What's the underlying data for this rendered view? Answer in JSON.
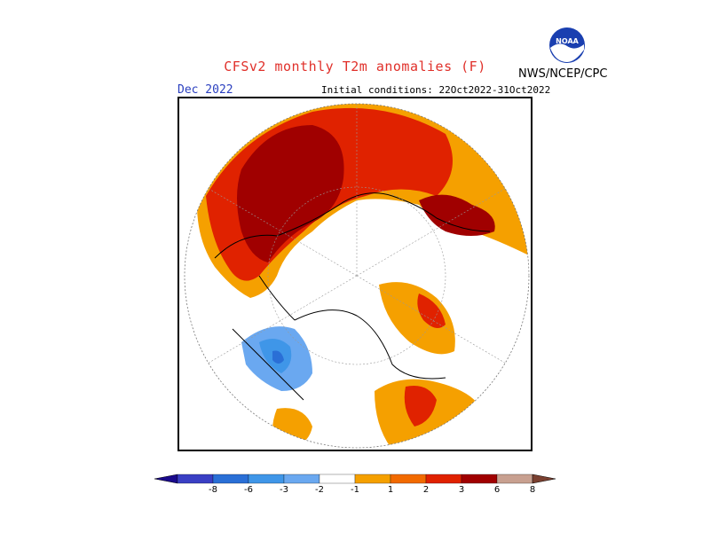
{
  "header": {
    "title": "CFSv2 monthly T2m anomalies (F)",
    "agency": "NWS/NCEP/CPC",
    "logo_text": "NOAA",
    "month": "Dec 2022",
    "initial_conditions": "Initial conditions: 22Oct2022-31Oct2022"
  },
  "legend": {
    "ticks": [
      "-8",
      "-6",
      "-3",
      "-2",
      "-1",
      "1",
      "2",
      "3",
      "6",
      "8"
    ],
    "colors": [
      "#1a0a8c",
      "#3a3fc4",
      "#2a6fd6",
      "#3f96e8",
      "#6aa8f0",
      "#ffffff",
      "#f5a000",
      "#f26a00",
      "#e02200",
      "#a00000",
      "#c8a090",
      "#7a4030"
    ]
  },
  "map_colors": {
    "dark_red": "#a00000",
    "red": "#e02200",
    "orange_red": "#f26a00",
    "orange": "#f5a000",
    "light_blue": "#6aa8f0",
    "blue": "#3f96e8",
    "mid_blue": "#2a6fd6"
  }
}
